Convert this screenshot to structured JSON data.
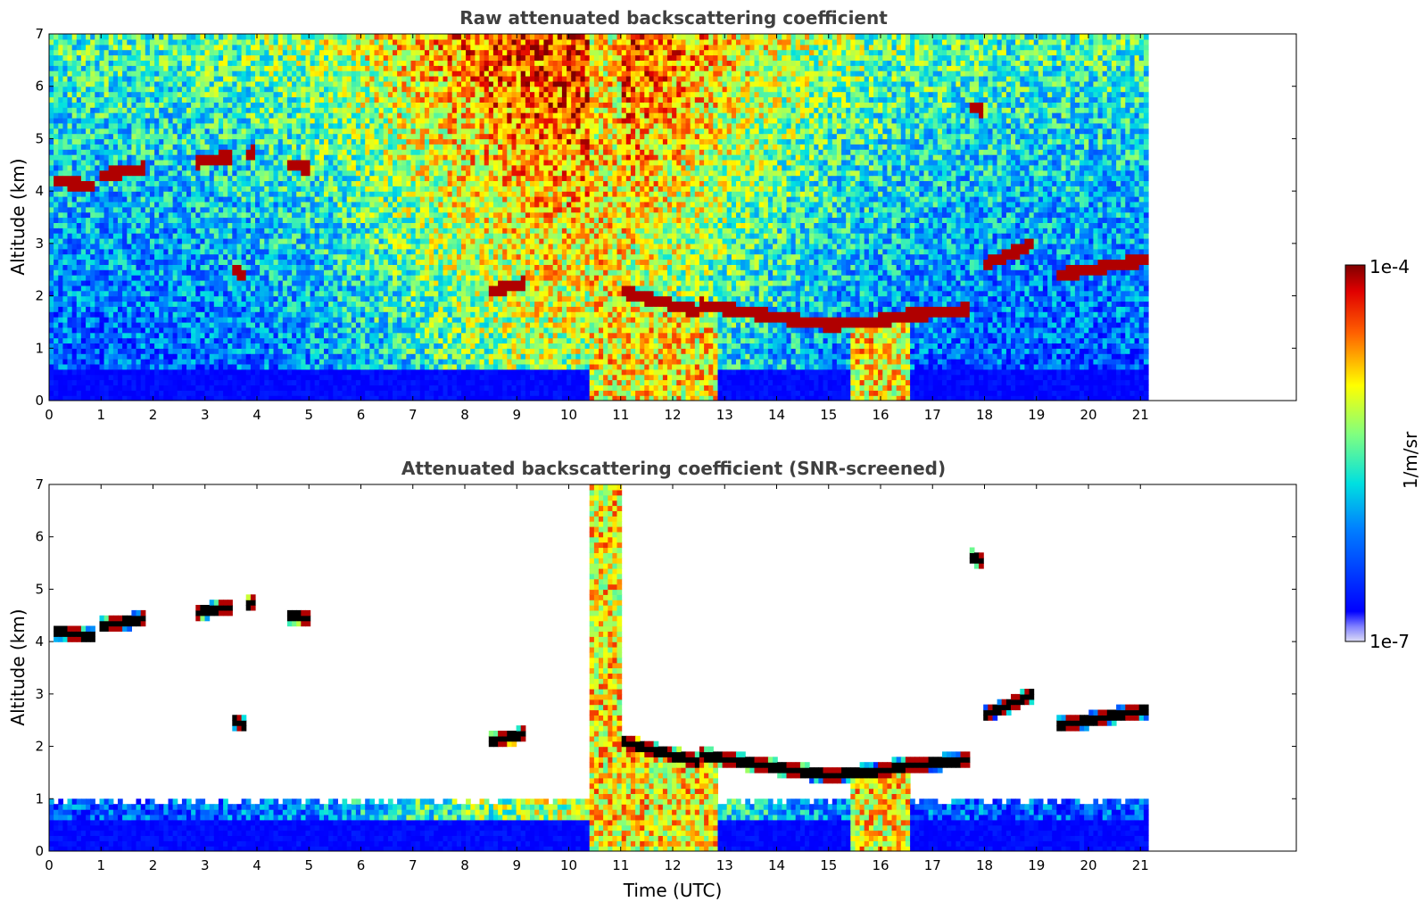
{
  "chart_data": [
    {
      "type": "heatmap",
      "title": "Raw attenuated backscattering coefficient",
      "xlabel": "",
      "ylabel": "Altitude (km)",
      "xlim": [
        0,
        24
      ],
      "ylim": [
        0,
        7
      ],
      "xticks": [
        "0",
        "1",
        "2",
        "3",
        "4",
        "5",
        "6",
        "7",
        "8",
        "9",
        "10",
        "11",
        "12",
        "13",
        "14",
        "15",
        "16",
        "17",
        "18",
        "19",
        "20",
        "21"
      ],
      "yticks": [
        "0",
        "1",
        "2",
        "3",
        "4",
        "5",
        "6",
        "7"
      ],
      "data_end_time": 21.15,
      "screened": false,
      "cloud_layers": [
        {
          "t": [
            0.1,
            0.9
          ],
          "alt": [
            4.2,
            4.1
          ]
        },
        {
          "t": [
            1.0,
            1.85
          ],
          "alt": [
            4.3,
            4.45
          ]
        },
        {
          "t": [
            2.8,
            4.0
          ],
          "alt": [
            4.55,
            4.75
          ]
        },
        {
          "t": [
            4.6,
            5.0
          ],
          "alt": [
            4.5,
            4.45
          ]
        },
        {
          "t": [
            3.5,
            3.8
          ],
          "alt": [
            2.5,
            2.4
          ]
        },
        {
          "t": [
            8.45,
            9.2
          ],
          "alt": [
            2.1,
            2.25
          ]
        },
        {
          "t": [
            11.0,
            12.5
          ],
          "alt": [
            2.1,
            1.7
          ]
        },
        {
          "t": [
            12.5,
            14.0
          ],
          "alt": [
            1.85,
            1.6
          ]
        },
        {
          "t": [
            14.0,
            15.0
          ],
          "alt": [
            1.6,
            1.45
          ]
        },
        {
          "t": [
            15.0,
            16.2
          ],
          "alt": [
            1.45,
            1.55
          ]
        },
        {
          "t": [
            16.2,
            17.7
          ],
          "alt": [
            1.6,
            1.75
          ]
        },
        {
          "t": [
            18.0,
            18.95
          ],
          "alt": [
            2.6,
            3.0
          ]
        },
        {
          "t": [
            19.4,
            21.15
          ],
          "alt": [
            2.4,
            2.7
          ]
        },
        {
          "t": [
            17.6,
            18.2
          ],
          "alt": [
            5.65,
            5.5
          ]
        }
      ]
    },
    {
      "type": "heatmap",
      "title": "Attenuated backscattering coefficient (SNR-screened)",
      "xlabel": "Time (UTC)",
      "ylabel": "Altitude (km)",
      "xlim": [
        0,
        24
      ],
      "ylim": [
        0,
        7
      ],
      "xticks": [
        "0",
        "1",
        "2",
        "3",
        "4",
        "5",
        "6",
        "7",
        "8",
        "9",
        "10",
        "11",
        "12",
        "13",
        "14",
        "15",
        "16",
        "17",
        "18",
        "19",
        "20",
        "21"
      ],
      "yticks": [
        "0",
        "1",
        "2",
        "3",
        "4",
        "5",
        "6",
        "7"
      ],
      "data_end_time": 21.15,
      "screened": true
    }
  ],
  "colorbar": {
    "label": "1/m/sr",
    "max_label": "1e-4",
    "min_label": "1e-7",
    "colormap": "jet"
  },
  "colors": {
    "title": "#404040",
    "axes": "#000000",
    "background": "#ffffff"
  }
}
